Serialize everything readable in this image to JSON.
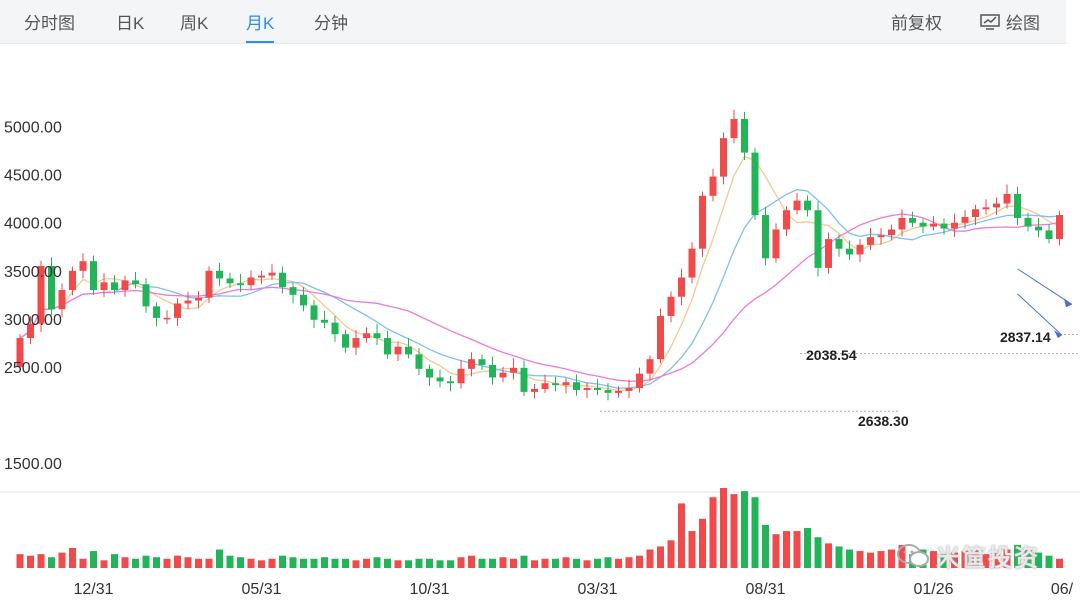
{
  "tabs": [
    {
      "label": "分时图",
      "active": false
    },
    {
      "label": "日K",
      "active": false
    },
    {
      "label": "周K",
      "active": false
    },
    {
      "label": "月K",
      "active": true
    },
    {
      "label": "分钟",
      "active": false
    }
  ],
  "tools": {
    "fq_label": "前复权",
    "draw_label": "绘图",
    "draw_icon": "chart-draw-icon"
  },
  "watermark": {
    "text": "米筐投资",
    "icon": "wechat-icon"
  },
  "colors": {
    "up": "#f04a4a",
    "down": "#21b557",
    "ma5": "#f5c990",
    "ma10": "#7fc1f0",
    "ma20": "#f07ad8",
    "trend": "#4a6fd1"
  },
  "chart_data": {
    "type": "candlestick",
    "ylim": [
      1500,
      5350
    ],
    "y_ticks": [
      "5000.00",
      "4500.00",
      "4000.00",
      "3500.00",
      "3000.00",
      "2500.00",
      "1500.00"
    ],
    "x_ticks": [
      "12/31",
      "05/31",
      "10/31",
      "03/31",
      "08/31",
      "01/26",
      "06/"
    ],
    "annotations": [
      "2638.30",
      "2837.14",
      "2038.54"
    ],
    "close_start": 2500,
    "close_changes": [
      300,
      150,
      600,
      -450,
      200,
      200,
      100,
      -300,
      80,
      -80,
      100,
      -40,
      -230,
      -120,
      0,
      150,
      30,
      30,
      280,
      -80,
      -50,
      -20,
      80,
      20,
      30,
      -150,
      -80,
      -110,
      -150,
      -30,
      -120,
      -140,
      100,
      50,
      -50,
      -170,
      80,
      -80,
      -150,
      -90,
      -40,
      -20,
      150,
      100,
      -60,
      -130,
      50,
      50,
      -250,
      30,
      60,
      -20,
      30,
      -80,
      20,
      -20,
      -30,
      20,
      30,
      150,
      150,
      450,
      200,
      200,
      300,
      550,
      200,
      400,
      200,
      -350,
      -650,
      -450,
      300,
      200,
      100,
      -100,
      -600,
      300,
      -100,
      -60,
      100,
      80,
      20,
      60,
      120,
      -50,
      -40,
      30,
      -50,
      60,
      60,
      80,
      20,
      40,
      100,
      -250,
      -90,
      -40,
      -90,
      250
    ],
    "volumes": [
      45,
      40,
      45,
      35,
      50,
      65,
      30,
      55,
      25,
      45,
      35,
      30,
      40,
      35,
      30,
      40,
      35,
      30,
      30,
      60,
      40,
      35,
      30,
      25,
      30,
      40,
      35,
      30,
      30,
      35,
      30,
      30,
      25,
      30,
      35,
      30,
      25,
      25,
      30,
      30,
      25,
      25,
      35,
      40,
      30,
      30,
      35,
      30,
      40,
      25,
      30,
      30,
      35,
      30,
      25,
      30,
      35,
      30,
      35,
      40,
      60,
      70,
      90,
      210,
      120,
      160,
      230,
      260,
      240,
      250,
      230,
      140,
      110,
      120,
      120,
      130,
      100,
      80,
      70,
      60,
      55,
      50,
      55,
      60,
      75,
      45,
      60,
      55,
      45,
      50,
      55,
      65,
      45,
      50,
      60,
      75,
      60,
      50,
      40,
      30
    ]
  }
}
